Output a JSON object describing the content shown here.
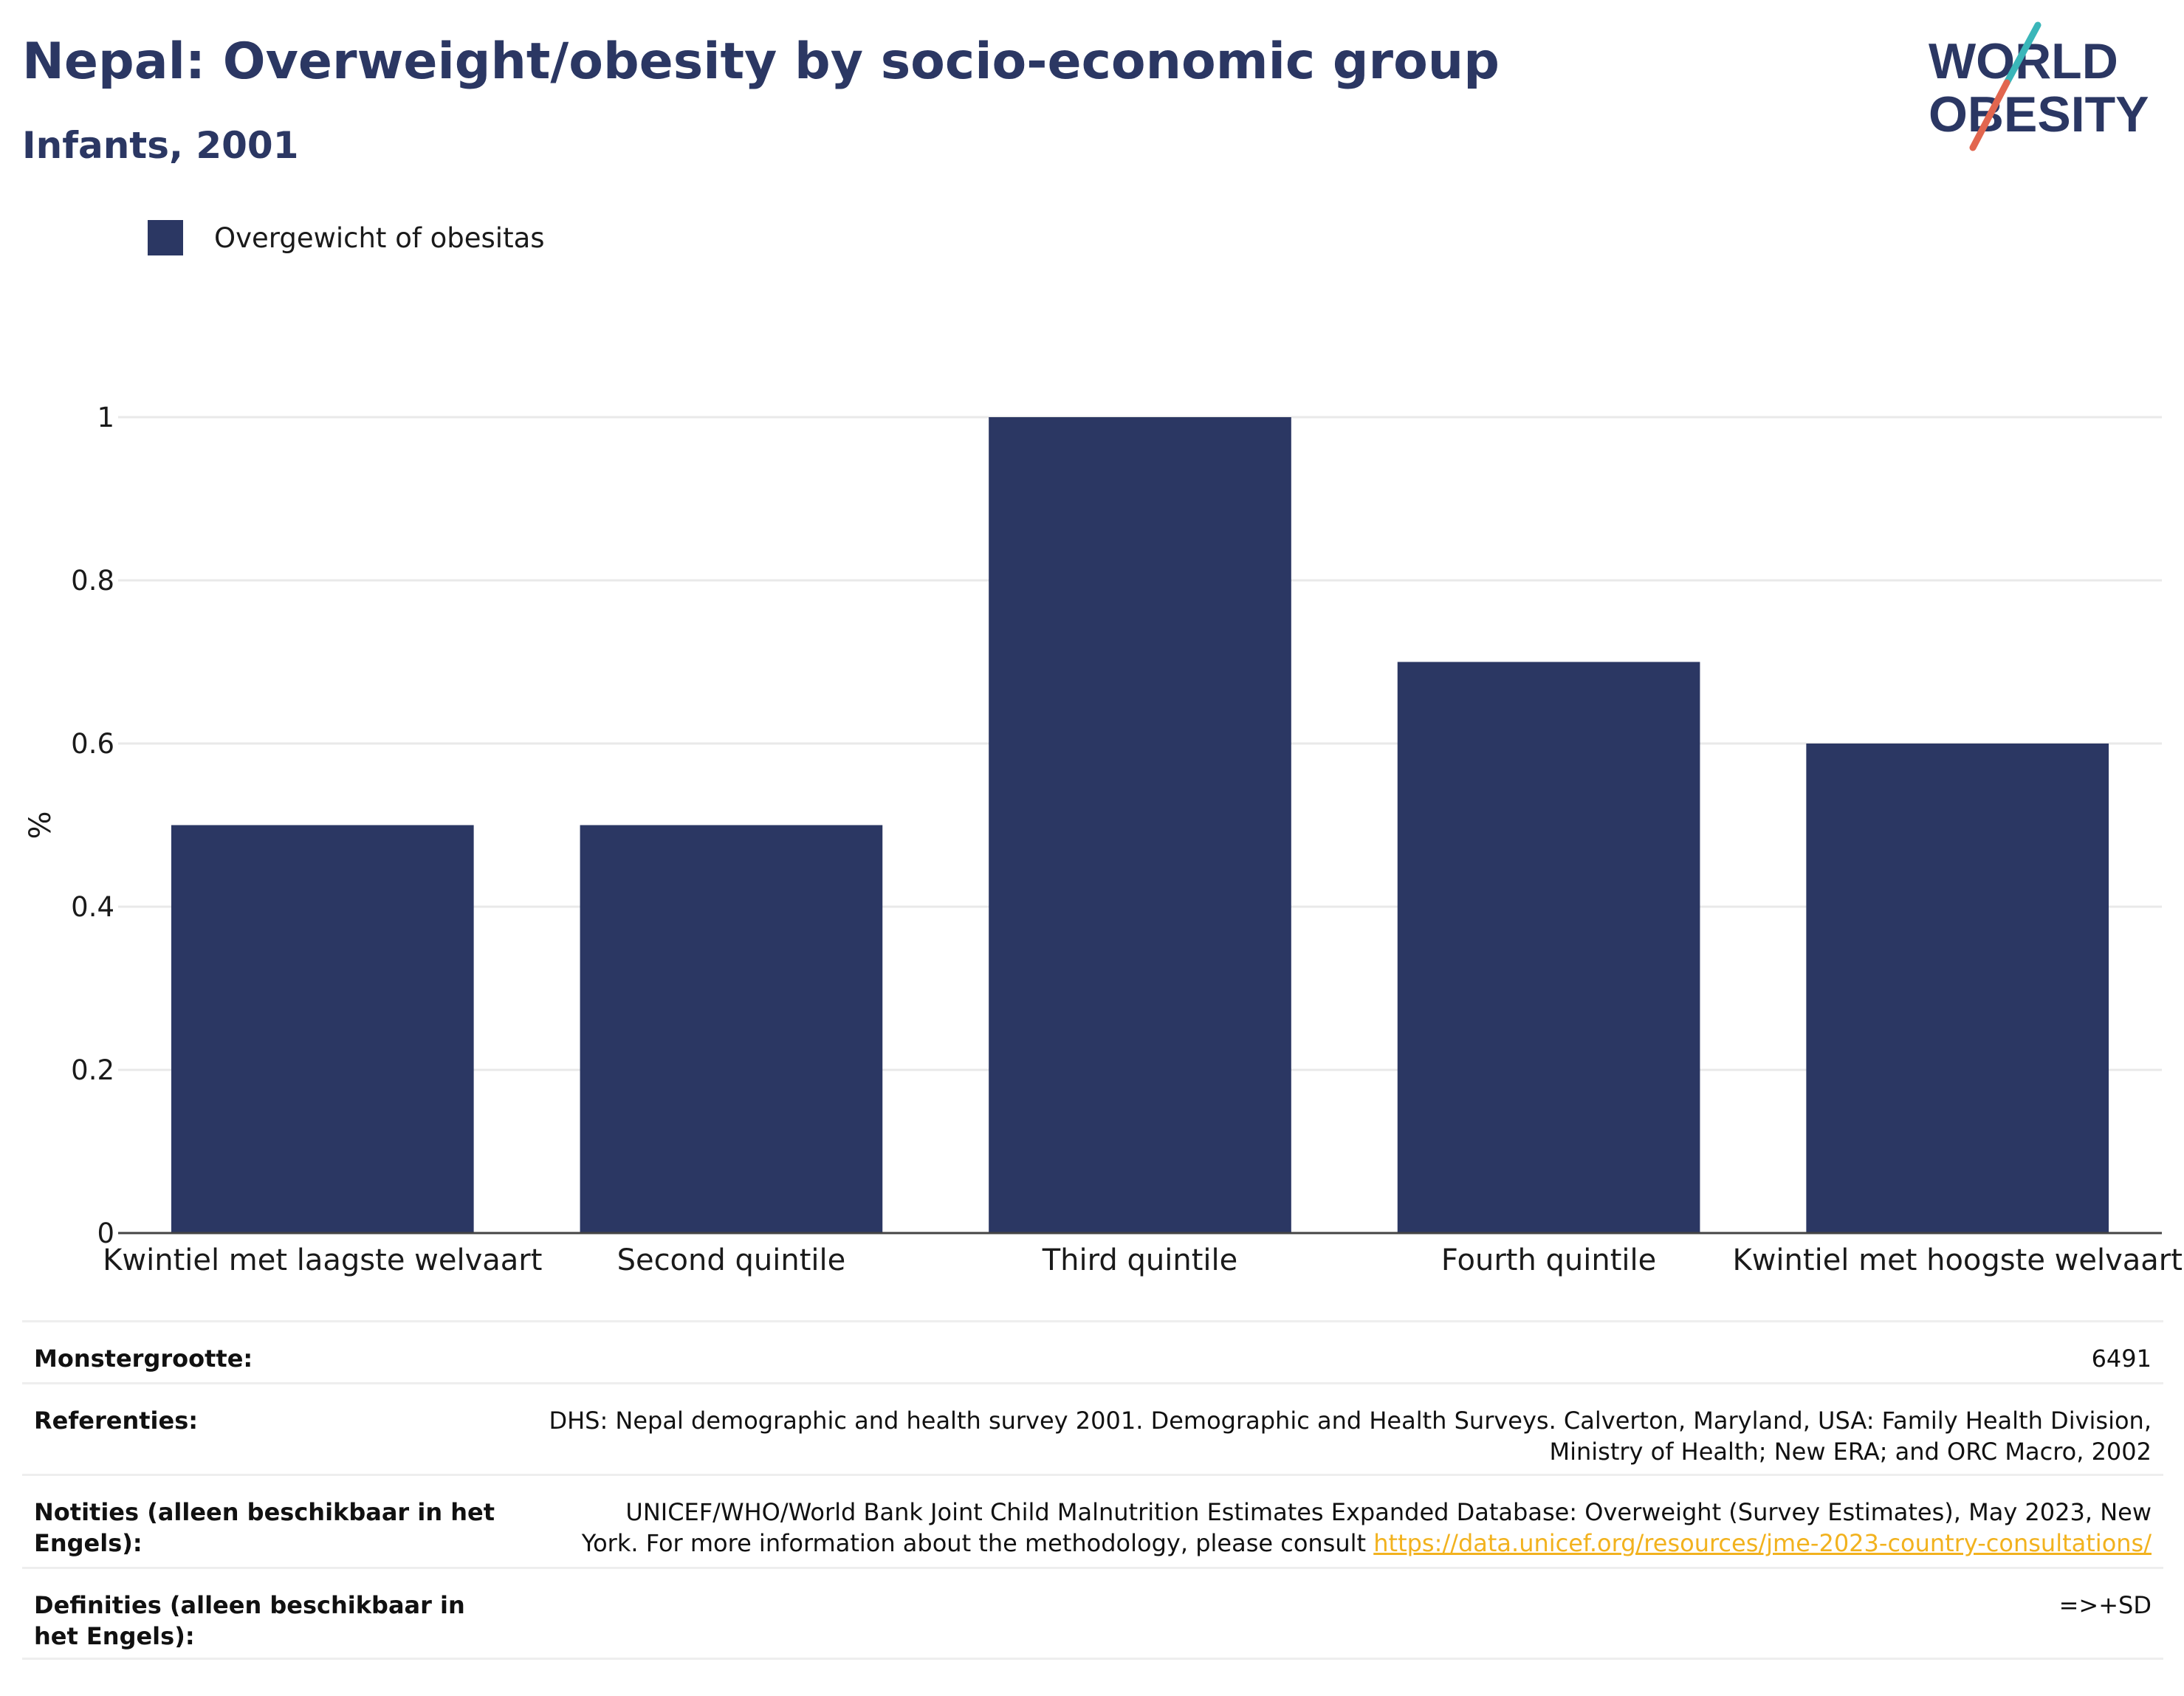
{
  "header": {
    "title": "Nepal: Overweight/obesity by socio-economic group",
    "subtitle": "Infants, 2001"
  },
  "logo": {
    "line1": "WORLD",
    "line2": "OBESITY",
    "colors": {
      "text": "#2b3763",
      "slash_teal": "#3ab6b9",
      "slash_coral": "#e2664f"
    }
  },
  "legend": {
    "label": "Overgewicht of obesitas"
  },
  "colors": {
    "bar": "#2b3763",
    "grid": "#e9e9e9",
    "axis": "#444444",
    "link": "#f2b21e"
  },
  "chart_data": {
    "type": "bar",
    "categories": [
      "Kwintiel met laagste welvaart",
      "Second quintile",
      "Third quintile",
      "Fourth quintile",
      "Kwintiel met hoogste welvaart"
    ],
    "series": [
      {
        "name": "Overgewicht of obesitas",
        "values": [
          0.5,
          0.5,
          1.0,
          0.7,
          0.6
        ]
      }
    ],
    "ylabel": "%",
    "ylim": [
      0,
      1
    ],
    "yticks": [
      0,
      0.2,
      0.4,
      0.6,
      0.8,
      1
    ],
    "ytick_labels": [
      "0",
      "0.2",
      "0.4",
      "0.6",
      "0.8",
      "1"
    ],
    "grid": true,
    "legend_position": "top-left"
  },
  "meta": {
    "sample_size": {
      "label": "Monstergrootte:",
      "value": "6491"
    },
    "references": {
      "label": "Referenties:",
      "line1": "DHS: Nepal demographic and health survey 2001. Demographic and Health Surveys. Calverton, Maryland, USA: Family Health Division,",
      "line2": "Ministry of Health; New ERA; and ORC Macro, 2002"
    },
    "notes": {
      "label": "Notities (alleen beschikbaar in het Engels):",
      "line1": "UNICEF/WHO/World Bank Joint Child Malnutrition Estimates Expanded Database: Overweight (Survey Estimates), May 2023, New",
      "line2": "York. For more information about the methodology, please consult",
      "link": "https://data.unicef.org/resources/jme-2023-country-consultations/"
    },
    "definitions": {
      "label": "Definities (alleen beschikbaar in het Engels):",
      "value": "=>+SD"
    }
  }
}
